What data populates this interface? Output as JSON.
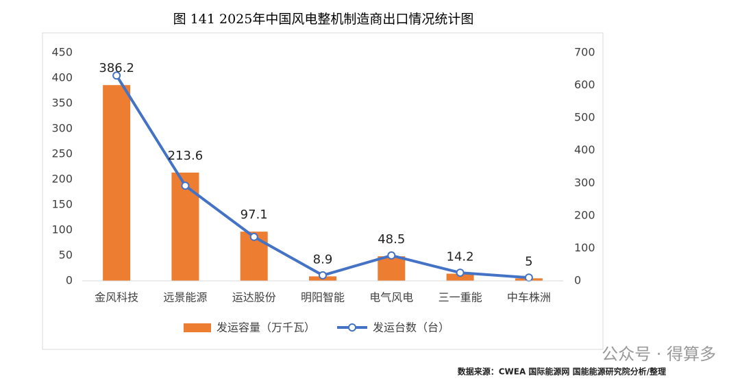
{
  "chart_data": {
    "type": "bar",
    "title": "图 141 2025年中国风电整机制造商出口情况统计图",
    "categories": [
      "金风科技",
      "远景能源",
      "运达股份",
      "明阳智能",
      "电气风电",
      "三一重能",
      "中车株洲"
    ],
    "series": [
      {
        "name": "发运容量（万千瓦）",
        "type": "bar",
        "color": "#ed7d31",
        "values": [
          386.2,
          213.6,
          97.1,
          8.9,
          48.5,
          14.2,
          5
        ]
      },
      {
        "name": "发运台数（台）",
        "type": "line",
        "axis": "y2",
        "color": "#4472c4",
        "values": [
          630,
          292,
          135,
          17,
          78,
          25,
          10
        ]
      }
    ],
    "ylim": [
      0,
      450
    ],
    "yticks": [
      0,
      50,
      100,
      150,
      200,
      250,
      300,
      350,
      400,
      450
    ],
    "y2lim": [
      0,
      700
    ],
    "y2ticks": [
      0,
      100,
      200,
      300,
      400,
      500,
      600,
      700
    ],
    "grid": false,
    "legend": "bottom",
    "source": "数据来源：CWEA 国际能源网 国能能源研究院分析/整理",
    "watermark": "公众号 · 得算多"
  }
}
